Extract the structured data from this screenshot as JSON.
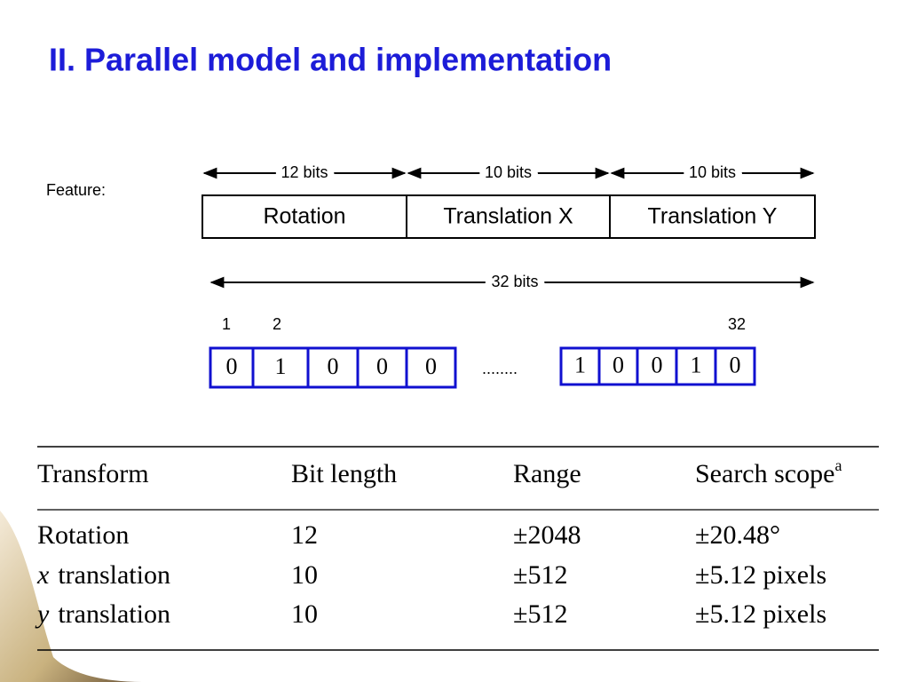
{
  "header": {
    "title": "II. Parallel model and implementation"
  },
  "feature": {
    "label": "Feature:",
    "segments": [
      {
        "bits": "12 bits",
        "field": "Rotation"
      },
      {
        "bits": "10 bits",
        "field": "Translation X"
      },
      {
        "bits": "10 bits",
        "field": "Translation Y"
      }
    ],
    "total": "32 bits",
    "positions": [
      "1",
      "2",
      "32"
    ],
    "left_bits": [
      "0",
      "1",
      "0",
      "0",
      "0"
    ],
    "ellipsis": "........",
    "right_bits": [
      "1",
      "0",
      "0",
      "1",
      "0"
    ]
  },
  "table": {
    "header": [
      "Transform",
      "Bit length",
      "Range",
      "Search scope"
    ],
    "header_note": "a",
    "rows": [
      [
        {
          "text": "Rotation"
        },
        "12",
        "±2048",
        "±20.48°"
      ],
      [
        {
          "italic": "x",
          "text": "translation"
        },
        "10",
        "±512",
        "±5.12 pixels"
      ],
      [
        {
          "italic": "y",
          "text": "translation"
        },
        "10",
        "±512",
        "±5.12 pixels"
      ]
    ]
  }
}
